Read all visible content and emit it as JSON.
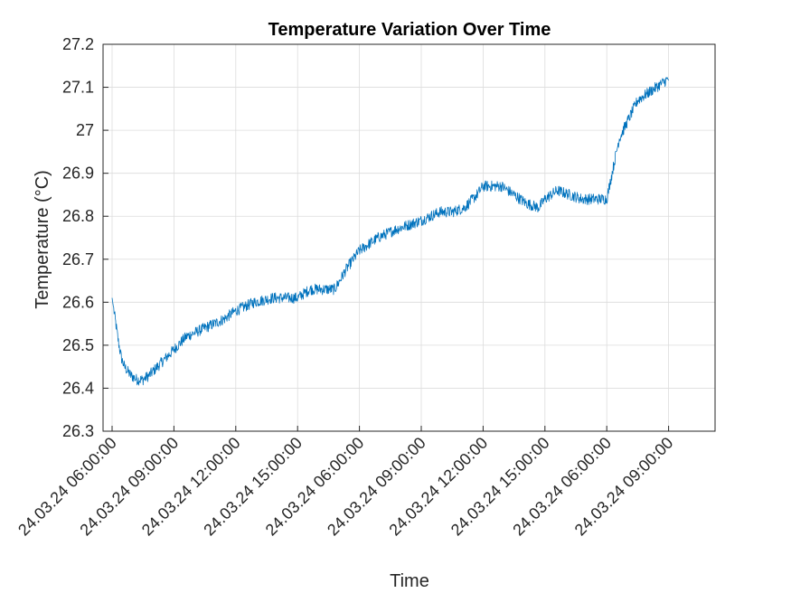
{
  "chart_data": {
    "type": "line",
    "title": "Temperature Variation Over Time",
    "xlabel": "Time",
    "ylabel": "Temperature (°C)",
    "ylim": [
      26.3,
      27.2
    ],
    "y_ticks": [
      26.3,
      26.4,
      26.5,
      26.6,
      26.7,
      26.8,
      26.9,
      27,
      27.1,
      27.2
    ],
    "x_tick_labels": [
      "24.03.24 06:00:00",
      "24.03.24 09:00:00",
      "24.03.24 12:00:00",
      "24.03.24 15:00:00",
      "24.03.24 06:00:00",
      "24.03.24 09:00:00",
      "24.03.24 12:00:00",
      "24.03.24 15:00:00",
      "24.03.24 06:00:00",
      "24.03.24 09:00:00"
    ],
    "grid": true,
    "series": [
      {
        "color": "#0072BD",
        "x": [
          0,
          0.05,
          0.1,
          0.15,
          0.2,
          0.3,
          0.4,
          0.5,
          0.6,
          0.8,
          1.0,
          1.2,
          1.5,
          1.8,
          2.0,
          2.3,
          2.6,
          2.9,
          3.0,
          3.2,
          3.4,
          3.5,
          3.6,
          3.8,
          4.0,
          4.3,
          4.6,
          5.0,
          5.3,
          5.5,
          5.7,
          5.9,
          6.0,
          6.15,
          6.3,
          6.5,
          6.7,
          6.9,
          7.0,
          7.2,
          7.4,
          7.6,
          7.8,
          8.0,
          8.2,
          8.4,
          8.5,
          8.7,
          8.9,
          9.0
        ],
        "values": [
          26.61,
          26.56,
          26.51,
          26.47,
          26.45,
          26.43,
          26.42,
          26.42,
          26.43,
          26.46,
          26.49,
          26.52,
          26.54,
          26.56,
          26.58,
          26.6,
          26.61,
          26.61,
          26.61,
          26.63,
          26.63,
          26.63,
          26.63,
          26.68,
          26.72,
          26.75,
          26.77,
          26.79,
          26.81,
          26.81,
          26.82,
          26.85,
          26.87,
          26.87,
          26.87,
          26.85,
          26.83,
          26.82,
          26.84,
          26.86,
          26.85,
          26.84,
          26.84,
          26.84,
          26.98,
          27.04,
          27.07,
          27.09,
          27.11,
          27.12
        ]
      }
    ]
  }
}
